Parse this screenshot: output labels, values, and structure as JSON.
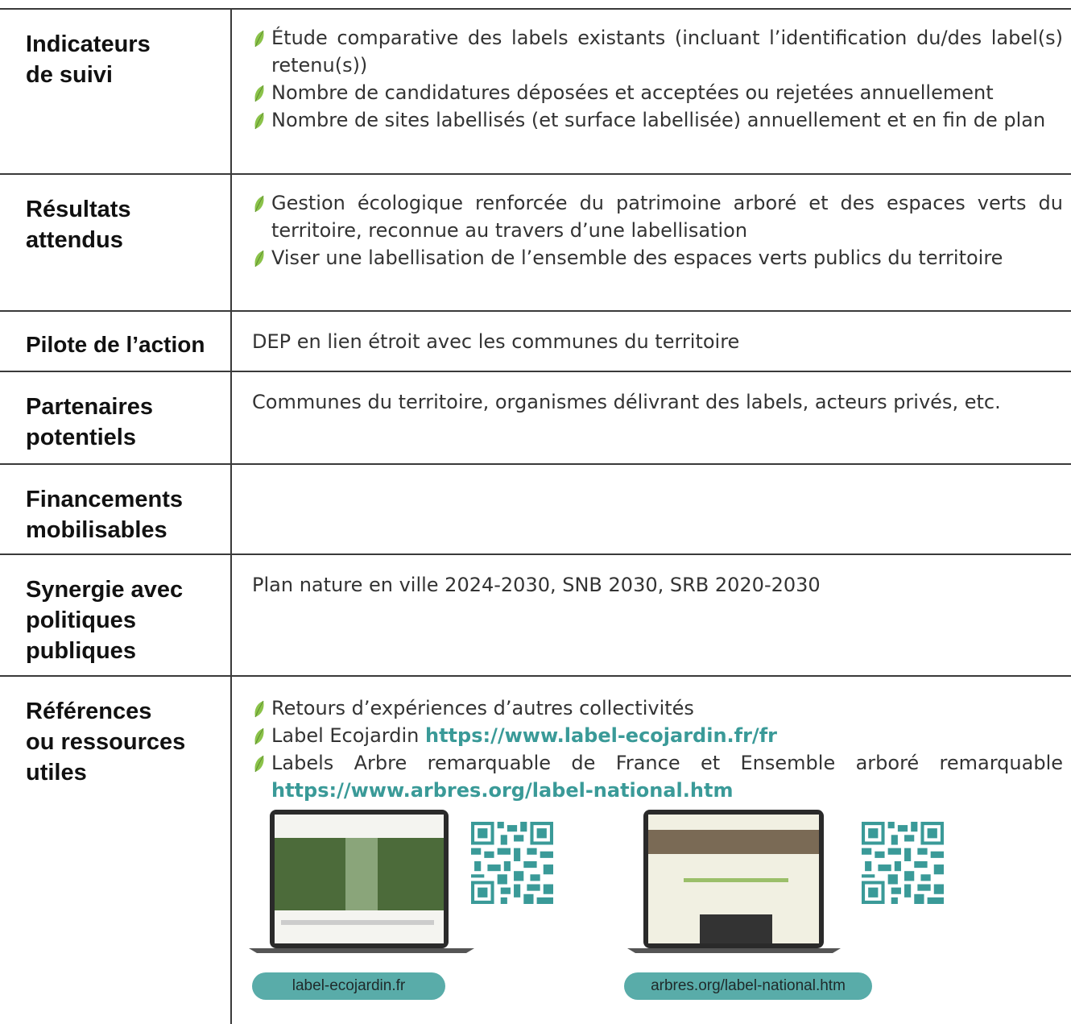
{
  "rows": [
    {
      "label": [
        "Indicateurs",
        "de suivi"
      ],
      "bullets": [
        "Étude comparative des labels existants (incluant l’identification du/des label(s) retenu(s))",
        "Nombre de candidatures déposées et acceptées ou rejetées annuellement",
        "Nombre de sites labellisés (et surface labellisée) annuellement et en fin de plan"
      ]
    },
    {
      "label": [
        "Résultats",
        "attendus"
      ],
      "bullets": [
        "Gestion écologique renforcée du patrimoine arboré et des espaces verts du territoire, reconnue au travers d’une labellisation",
        "Viser une labellisation de l’ensemble des espaces verts publics du territoire"
      ]
    },
    {
      "label": [
        "Pilote de l’action"
      ],
      "text": "DEP en lien étroit avec les communes du territoire"
    },
    {
      "label": [
        "Partenaires",
        "potentiels"
      ],
      "text": "Communes du territoire, organismes délivrant des labels, acteurs privés, etc."
    },
    {
      "label": [
        "Financements",
        "mobilisables"
      ]
    },
    {
      "label": [
        "Synergie avec",
        "politiques",
        "publiques"
      ],
      "text": "Plan nature en ville 2024-2030, SNB 2030, SRB 2020-2030"
    },
    {
      "label": [
        "Références",
        "ou ressources",
        "utiles"
      ],
      "bullets": [
        {
          "text": "Retours d’expériences d’autres collectivités"
        },
        {
          "text": "Label Ecojardin",
          "link": "https://www.label-ecojardin.fr/fr"
        },
        {
          "text": "Labels Arbre remarquable de France et Ensemble arboré remarquable",
          "link": "https://www.arbres.org/label-national.htm"
        }
      ],
      "resources": [
        {
          "caption": "label-ecojardin.fr"
        },
        {
          "caption": "arbres.org/label-national.htm"
        }
      ]
    }
  ]
}
